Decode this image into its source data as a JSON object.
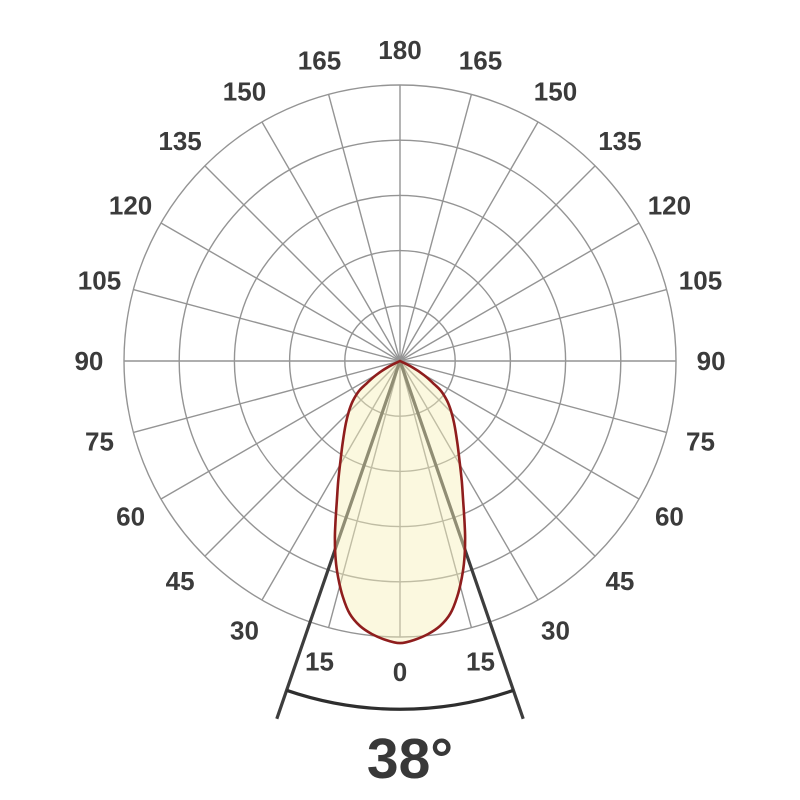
{
  "chart_data": {
    "type": "polar",
    "variant": "photometric_light_distribution",
    "title": "",
    "angle_unit": "deg",
    "grid": {
      "ring_count": 5,
      "radial_step_deg": 15,
      "rings_visible": true
    },
    "angle_labels": [
      {
        "text": "0",
        "phi": 0,
        "side": 0
      },
      {
        "text": "15",
        "phi": 15,
        "side": -1
      },
      {
        "text": "15",
        "phi": 15,
        "side": 1
      },
      {
        "text": "30",
        "phi": 30,
        "side": -1
      },
      {
        "text": "30",
        "phi": 30,
        "side": 1
      },
      {
        "text": "45",
        "phi": 45,
        "side": -1
      },
      {
        "text": "45",
        "phi": 45,
        "side": 1
      },
      {
        "text": "60",
        "phi": 60,
        "side": -1
      },
      {
        "text": "60",
        "phi": 60,
        "side": 1
      },
      {
        "text": "75",
        "phi": 75,
        "side": -1
      },
      {
        "text": "75",
        "phi": 75,
        "side": 1
      },
      {
        "text": "90",
        "phi": 90,
        "side": -1
      },
      {
        "text": "90",
        "phi": 90,
        "side": 1
      },
      {
        "text": "105",
        "phi": 105,
        "side": -1
      },
      {
        "text": "105",
        "phi": 105,
        "side": 1
      },
      {
        "text": "120",
        "phi": 120,
        "side": -1
      },
      {
        "text": "120",
        "phi": 120,
        "side": 1
      },
      {
        "text": "135",
        "phi": 135,
        "side": -1
      },
      {
        "text": "135",
        "phi": 135,
        "side": 1
      },
      {
        "text": "150",
        "phi": 150,
        "side": -1
      },
      {
        "text": "150",
        "phi": 150,
        "side": 1
      },
      {
        "text": "165",
        "phi": 165,
        "side": -1
      },
      {
        "text": "165",
        "phi": 165,
        "side": 1
      },
      {
        "text": "180",
        "phi": 180,
        "side": 0
      }
    ],
    "beam_angle": {
      "label": "38°",
      "value_deg": 38,
      "half_angle_deg": 19
    },
    "lobe": {
      "description": "downward light-intensity lobe; half-outline points [dx, dy] normalized to outer-ring radius, dy measured downward from polar center, peak at 0 deg reaching outer ring",
      "peak_r_norm": 1.022,
      "outline_points_norm": [
        [
          0.0,
          0.0
        ],
        [
          0.044,
          0.022
        ],
        [
          0.087,
          0.051
        ],
        [
          0.124,
          0.084
        ],
        [
          0.149,
          0.109
        ],
        [
          0.171,
          0.145
        ],
        [
          0.185,
          0.182
        ],
        [
          0.196,
          0.225
        ],
        [
          0.207,
          0.291
        ],
        [
          0.216,
          0.364
        ],
        [
          0.224,
          0.436
        ],
        [
          0.229,
          0.509
        ],
        [
          0.234,
          0.589
        ],
        [
          0.236,
          0.647
        ],
        [
          0.233,
          0.72
        ],
        [
          0.224,
          0.785
        ],
        [
          0.207,
          0.855
        ],
        [
          0.182,
          0.916
        ],
        [
          0.145,
          0.96
        ],
        [
          0.102,
          0.989
        ],
        [
          0.051,
          1.011
        ],
        [
          0.0,
          1.022
        ]
      ]
    },
    "colors": {
      "background": "#ffffff",
      "grid": "#949494",
      "label": "#3b3b3b",
      "lobe_fill": "#f6f0b9",
      "lobe_stroke": "#8f1d1d",
      "beam_line": "#3d3d3d",
      "arc": "#2e2e2e"
    }
  }
}
